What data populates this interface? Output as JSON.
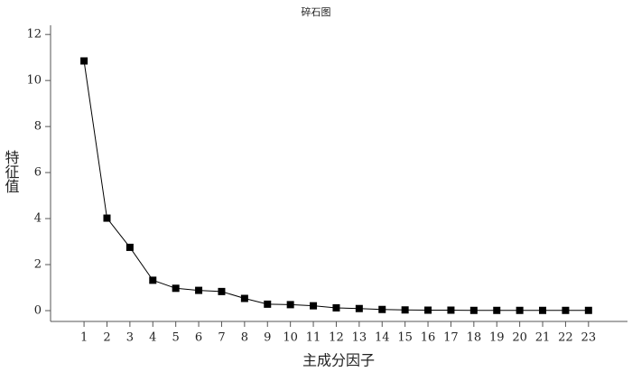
{
  "chart_data": {
    "type": "line",
    "title": "碎石图",
    "x_label": "主成分因子",
    "y_label": "特征值",
    "x": [
      1,
      2,
      3,
      4,
      5,
      6,
      7,
      8,
      9,
      10,
      11,
      12,
      13,
      14,
      15,
      16,
      17,
      18,
      19,
      20,
      21,
      22,
      23
    ],
    "series": [
      {
        "color": "#000000",
        "marker": "square",
        "values": [
          10.85,
          4.02,
          2.75,
          1.32,
          0.97,
          0.88,
          0.83,
          0.53,
          0.28,
          0.26,
          0.21,
          0.12,
          0.09,
          0.05,
          0.03,
          0.02,
          0.02,
          0.01,
          0.01,
          0.01,
          0.01,
          0.01,
          0.01
        ]
      }
    ],
    "xlim": [
      -0.46,
      24.7
    ],
    "ylim": [
      -0.47,
      12.4
    ],
    "xticks": [
      1,
      2,
      3,
      4,
      5,
      6,
      7,
      8,
      9,
      10,
      11,
      12,
      13,
      14,
      15,
      16,
      17,
      18,
      19,
      20,
      21,
      22,
      23
    ],
    "yticks": [
      0,
      2,
      4,
      6,
      8,
      10,
      12
    ],
    "grid": false
  }
}
